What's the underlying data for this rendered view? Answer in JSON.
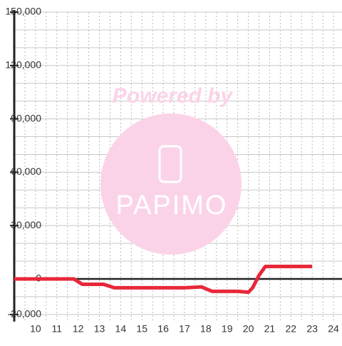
{
  "chart_data": {
    "type": "line",
    "x": [
      9,
      11.8,
      12.2,
      13.2,
      13.7,
      17,
      17.8,
      18.3,
      19.5,
      20,
      20.2,
      20.5,
      20.8,
      23
    ],
    "series": [
      {
        "color": "#e8283a",
        "values": [
          0,
          0,
          -3000,
          -3000,
          -5000,
          -5000,
          -4500,
          -7000,
          -7000,
          -7500,
          -5000,
          2000,
          7000,
          7000
        ]
      }
    ],
    "xlim": [
      9,
      24.4
    ],
    "ylim": [
      -24000,
      150000
    ],
    "xticks": [
      10,
      11,
      12,
      13,
      14,
      15,
      16,
      17,
      18,
      19,
      20,
      21,
      22,
      23,
      24
    ],
    "yticks": [
      {
        "value": -20000,
        "label": "-20,000"
      },
      0,
      {
        "value": 30000,
        "label": "30,000"
      },
      {
        "value": 60000,
        "label": "60,000"
      },
      {
        "value": 90000,
        "label": "90,000"
      },
      {
        "value": 120000,
        "label": "120,000"
      },
      {
        "value": 150000,
        "label": "150,000"
      }
    ],
    "ygrid": [
      -20000,
      -10000,
      10000,
      20000,
      30000,
      40000,
      50000,
      60000,
      70000,
      80000,
      90000,
      100000,
      110000,
      120000,
      130000,
      140000,
      150000
    ],
    "xgrid": [
      9.5,
      10,
      10.5,
      11,
      11.5,
      12,
      12.5,
      13,
      13.5,
      14,
      14.5,
      15,
      15.5,
      16,
      16.5,
      17,
      17.5,
      18,
      18.5,
      19,
      19.5,
      20,
      20.5,
      21,
      21.5,
      22,
      22.5,
      23,
      23.5,
      24
    ],
    "grid": true,
    "watermark": {
      "text": "Powered by",
      "logo": "PAPIMO"
    }
  }
}
